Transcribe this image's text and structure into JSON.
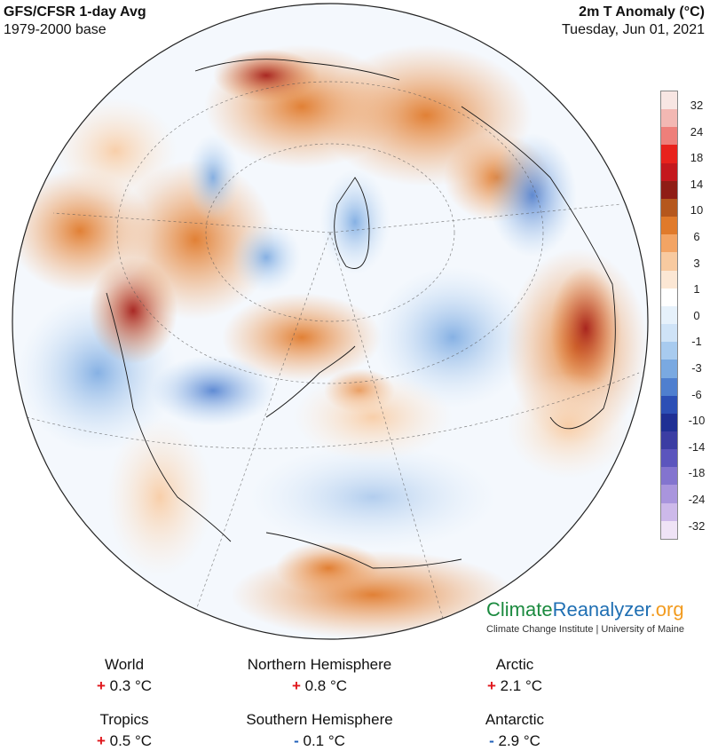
{
  "header": {
    "title_left": "GFS/CFSR 1-day Avg",
    "base_left": "1979-2000 base",
    "title_right": "2m T Anomaly (°C)",
    "date_right": "Tuesday, Jun 01, 2021"
  },
  "scale": {
    "ticks": [
      "32",
      "24",
      "18",
      "14",
      "10",
      "6",
      "3",
      "1",
      "0",
      "-1",
      "-3",
      "-6",
      "-10",
      "-14",
      "-18",
      "-24",
      "-32"
    ],
    "colors": [
      "#f8e6e3",
      "#f3b8b3",
      "#ee7f7a",
      "#e8221c",
      "#c4181d",
      "#8f1d15",
      "#b5571d",
      "#e07a2b",
      "#f3a464",
      "#f8caa0",
      "#fce7d4",
      "#ffffff",
      "#e6f1fb",
      "#cfe3f7",
      "#a8cbef",
      "#7aa9e1",
      "#4f7fcf",
      "#2c4fb5",
      "#1f2f94",
      "#3b3da3",
      "#5b55bd",
      "#8374cf",
      "#a995dd",
      "#cdb9ea",
      "#efe3f6"
    ]
  },
  "brand": {
    "part1": "Climate",
    "part2": "Reanalyzer",
    "part3": ".org",
    "subtitle": "Climate Change Institute | University of Maine"
  },
  "stats": {
    "world": {
      "label": "World",
      "sign": "+",
      "value": "0.3 °C"
    },
    "nh": {
      "label": "Northern Hemisphere",
      "sign": "+",
      "value": "0.8 °C"
    },
    "arctic": {
      "label": "Arctic",
      "sign": "+",
      "value": "2.1 °C"
    },
    "tropics": {
      "label": "Tropics",
      "sign": "+",
      "value": "0.5 °C"
    },
    "sh": {
      "label": "Southern Hemisphere",
      "sign": "-",
      "value": "0.1 °C"
    },
    "antarctic": {
      "label": "Antarctic",
      "sign": "-",
      "value": "2.9 °C"
    }
  }
}
